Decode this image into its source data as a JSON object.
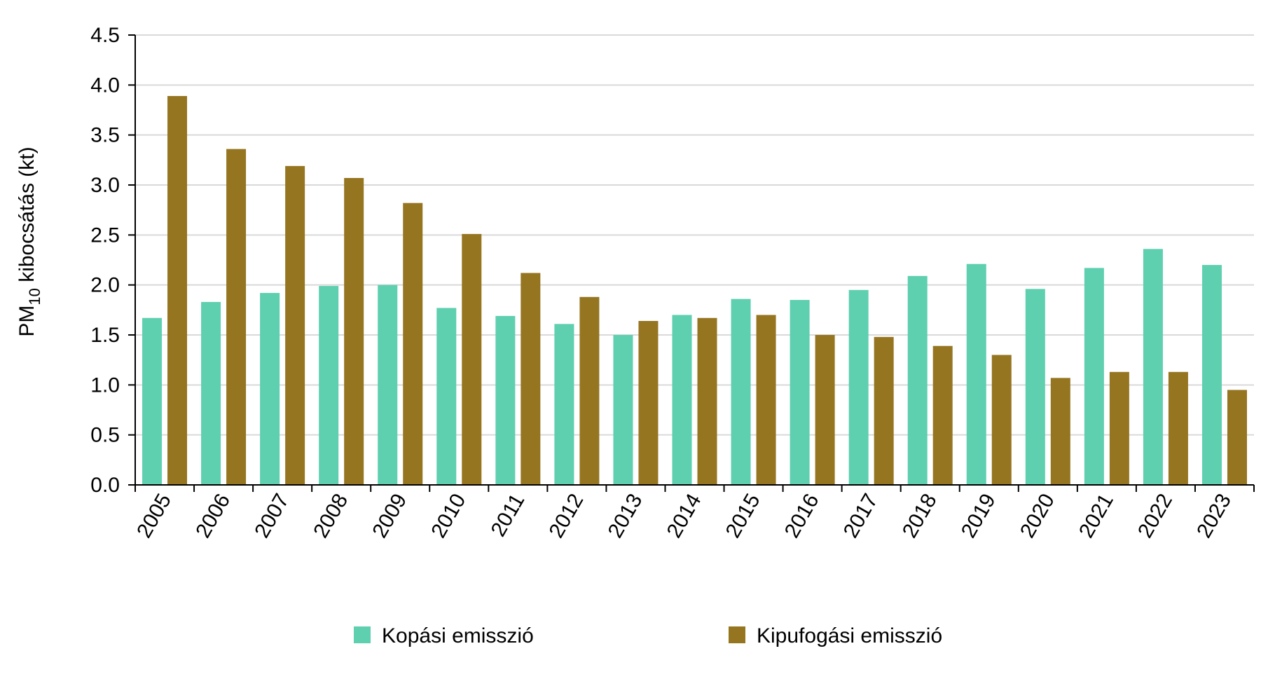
{
  "chart_data": {
    "type": "bar",
    "title": "",
    "xlabel": "",
    "ylabel": {
      "prefix": "PM",
      "subscript": "10",
      "suffix": " kibocsátás (kt)"
    },
    "ylim": [
      0,
      4.5
    ],
    "yticks": [
      "0.0",
      "0.5",
      "1.0",
      "1.5",
      "2.0",
      "2.5",
      "3.0",
      "3.5",
      "4.0",
      "4.5"
    ],
    "grid": true,
    "legend_position": "bottom",
    "categories": [
      "2005",
      "2006",
      "2007",
      "2008",
      "2009",
      "2010",
      "2011",
      "2012",
      "2013",
      "2014",
      "2015",
      "2016",
      "2017",
      "2018",
      "2019",
      "2020",
      "2021",
      "2022",
      "2023"
    ],
    "series": [
      {
        "name": "Kopási emisszió",
        "color": "#5ECFAF",
        "values": [
          1.67,
          1.83,
          1.92,
          1.99,
          2.0,
          1.77,
          1.69,
          1.61,
          1.5,
          1.7,
          1.86,
          1.85,
          1.95,
          2.09,
          2.21,
          1.96,
          2.17,
          2.36,
          2.2
        ]
      },
      {
        "name": "Kipufogási emisszió",
        "color": "#967521",
        "values": [
          3.89,
          3.36,
          3.19,
          3.07,
          2.82,
          2.51,
          2.12,
          1.88,
          1.64,
          1.67,
          1.7,
          1.5,
          1.48,
          1.39,
          1.3,
          1.07,
          1.13,
          1.13,
          0.95
        ]
      }
    ]
  }
}
